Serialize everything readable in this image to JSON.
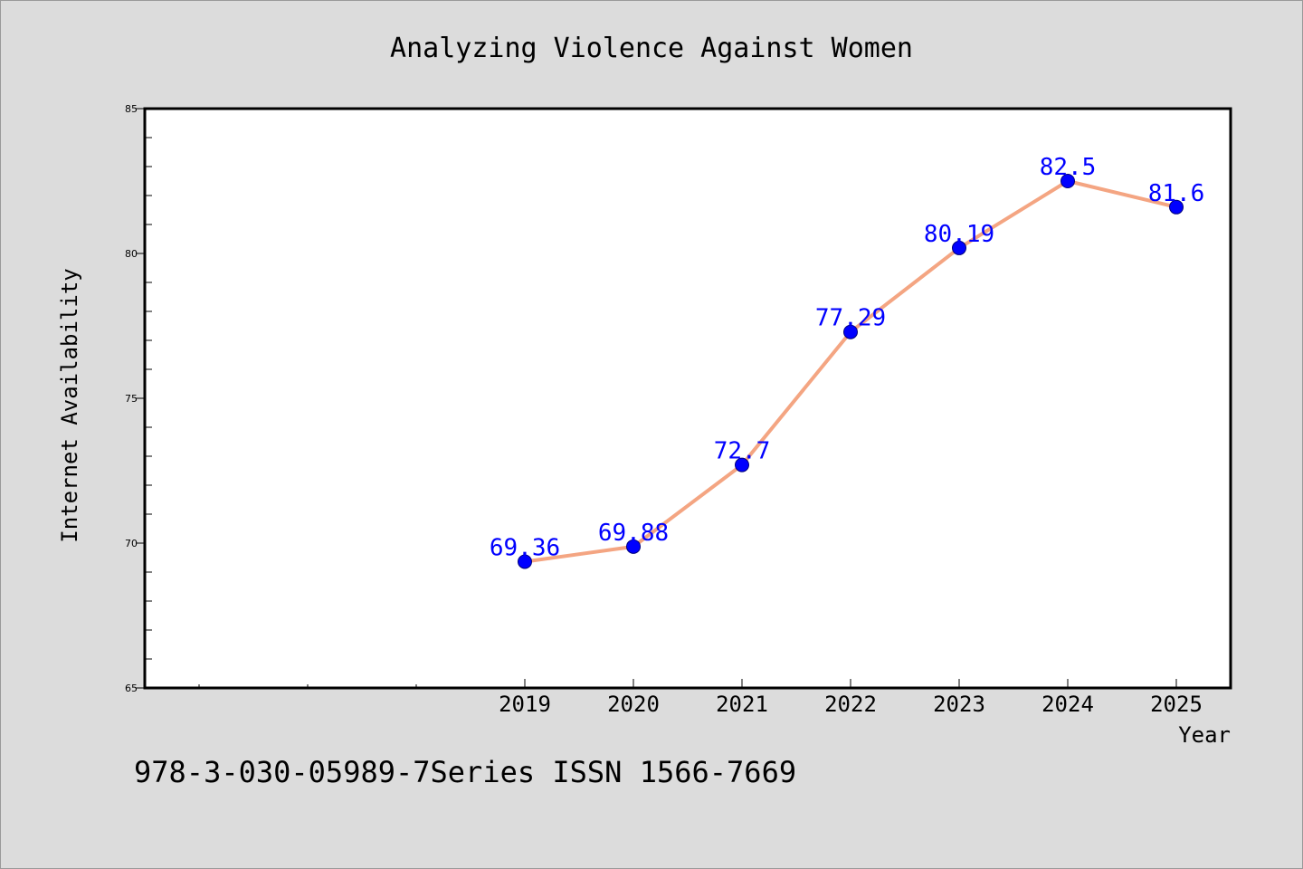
{
  "chart_data": {
    "type": "line",
    "title": "Analyzing Violence Against Women",
    "xlabel": "Year",
    "ylabel": "Internet Availability",
    "x": [
      2019,
      2020,
      2021,
      2022,
      2023,
      2024,
      2025
    ],
    "x_tick_labels": [
      "2019",
      "2020",
      "2021",
      "2022",
      "2023",
      "2024",
      "2025"
    ],
    "values": [
      69.36,
      69.88,
      72.7,
      77.29,
      80.19,
      82.5,
      81.6
    ],
    "data_labels": [
      "69.36",
      "69.88",
      "72.7",
      "77.29",
      "80.19",
      "82.5",
      "81.6"
    ],
    "ylim": [
      65,
      85
    ],
    "y_ticks": [
      65,
      70,
      75,
      80,
      85
    ],
    "y_tick_labels": [
      "65",
      "70",
      "75",
      "80",
      "85"
    ],
    "xlim": [
      2015.5,
      2025.5
    ],
    "grid": false,
    "line_color": "#f4a582",
    "marker_color": "#0000ff",
    "label_color": "#0000ff"
  },
  "footer": {
    "text": "978-3-030-05989-7Series ISSN 1566-7669"
  }
}
